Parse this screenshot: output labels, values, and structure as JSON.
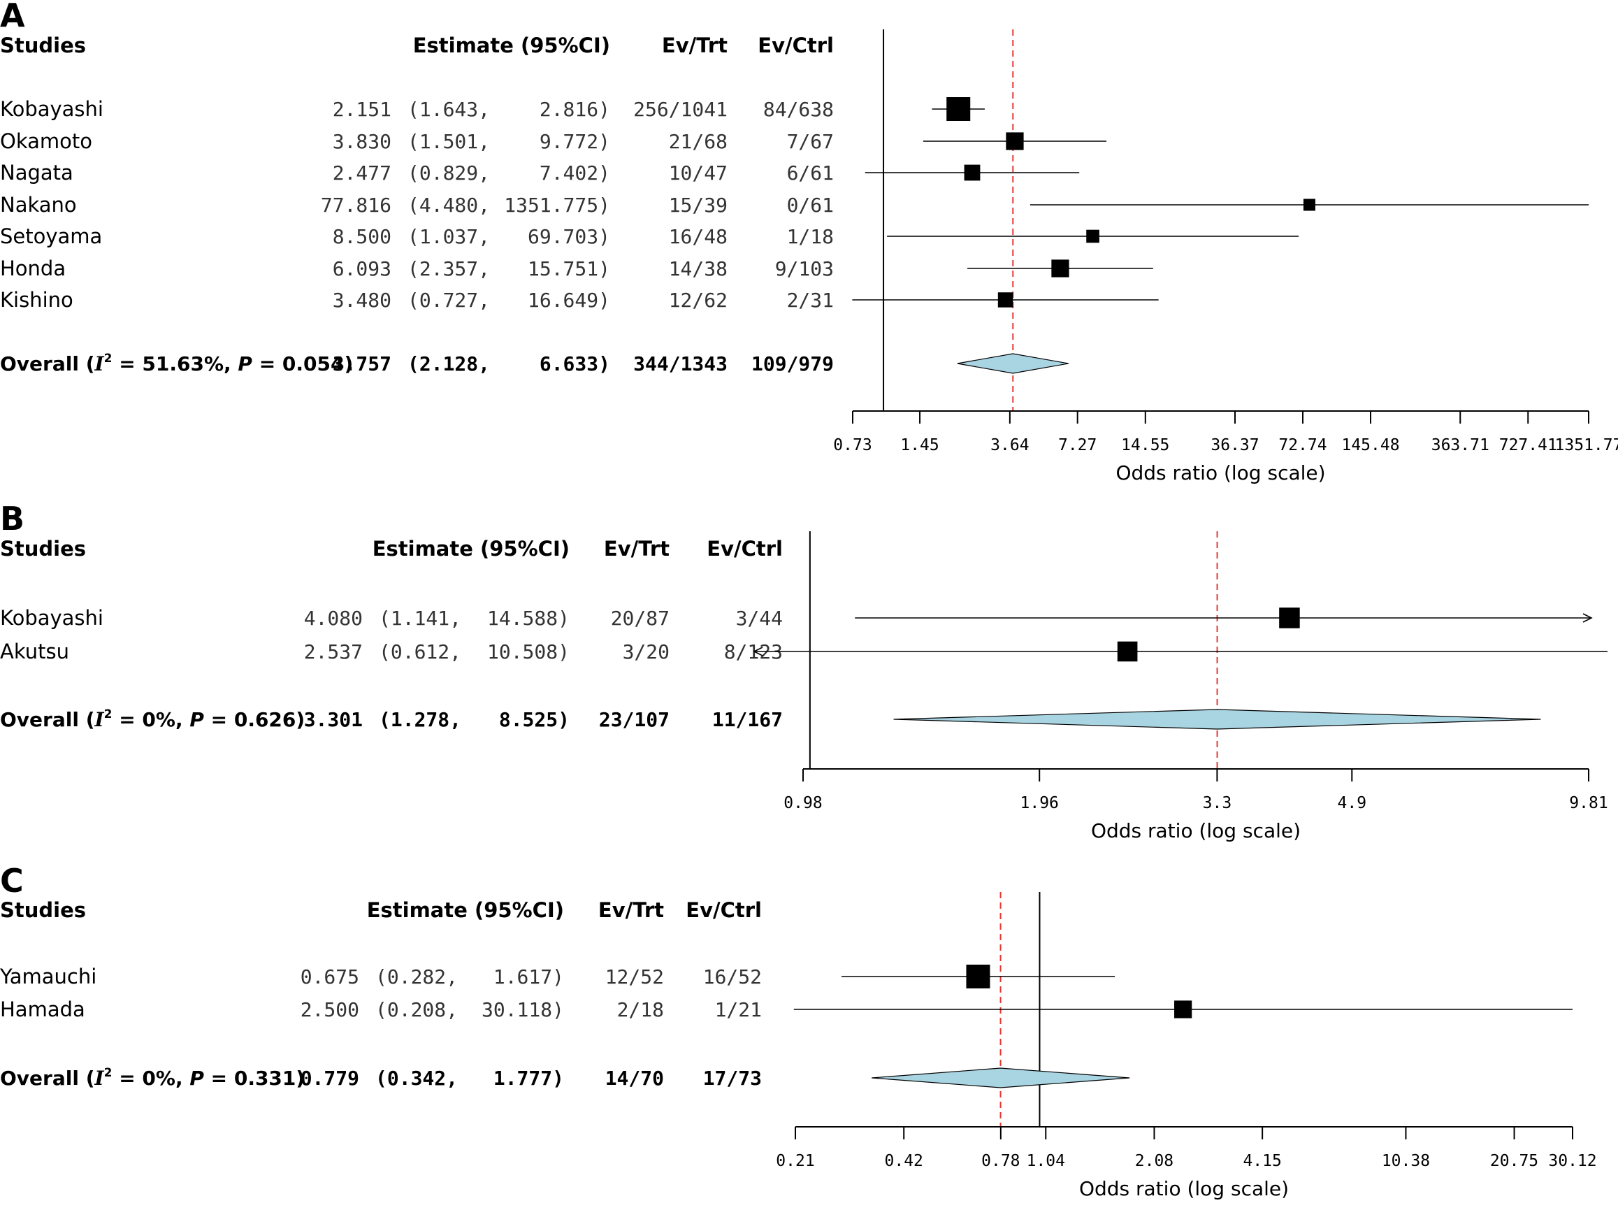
{
  "chart_data": [
    {
      "type": "forest",
      "panel_letter": "A",
      "xlabel": "Odds ratio (log scale)",
      "scale": "log",
      "xlim": [
        0.73,
        1351.77
      ],
      "ticks": [
        {
          "value": 0.73,
          "label": "0.73"
        },
        {
          "value": 1.45,
          "label": "1.45"
        },
        {
          "value": 3.64,
          "label": "3.64"
        },
        {
          "value": 7.27,
          "label": "7.27"
        },
        {
          "value": 14.55,
          "label": "14.55"
        },
        {
          "value": 36.37,
          "label": "36.37"
        },
        {
          "value": 72.74,
          "label": "72.74"
        },
        {
          "value": 145.48,
          "label": "145.48"
        },
        {
          "value": 363.71,
          "label": "363.71"
        },
        {
          "value": 727.41,
          "label": "727.41"
        },
        {
          "value": 1351.77,
          "label": "1351.77"
        }
      ],
      "null_line": 1,
      "pooled_line": 3.757,
      "headers": {
        "studies": "Studies",
        "estimate": "Estimate (95%CI)",
        "ev_trt": "Ev/Trt",
        "ev_ctrl": "Ev/Ctrl"
      },
      "studies": [
        {
          "name": "Kobayashi",
          "est": 2.151,
          "lo": 1.643,
          "hi": 2.816,
          "est_text": "2.151",
          "lo_text": "(1.643,",
          "hi_text": "2.816)",
          "ev_trt": "256/1041",
          "ev_ctrl": "84/638",
          "weight": 1.0
        },
        {
          "name": "Okamoto",
          "est": 3.83,
          "lo": 1.501,
          "hi": 9.772,
          "est_text": "3.830",
          "lo_text": "(1.501,",
          "hi_text": "9.772)",
          "ev_trt": "21/68",
          "ev_ctrl": "7/67",
          "weight": 0.55
        },
        {
          "name": "Nagata",
          "est": 2.477,
          "lo": 0.829,
          "hi": 7.402,
          "est_text": "2.477",
          "lo_text": "(0.829,",
          "hi_text": "7.402)",
          "ev_trt": "10/47",
          "ev_ctrl": "6/61",
          "weight": 0.45
        },
        {
          "name": "Nakano",
          "est": 77.816,
          "lo": 4.48,
          "hi": 1351.775,
          "est_text": "77.816",
          "lo_text": "(4.480,",
          "hi_text": "1351.775)",
          "ev_trt": "15/39",
          "ev_ctrl": "0/61",
          "weight": 0.25
        },
        {
          "name": "Setoyama",
          "est": 8.5,
          "lo": 1.037,
          "hi": 69.703,
          "est_text": "8.500",
          "lo_text": "(1.037,",
          "hi_text": "69.703)",
          "ev_trt": "16/48",
          "ev_ctrl": "1/18",
          "weight": 0.3
        },
        {
          "name": "Honda",
          "est": 6.093,
          "lo": 2.357,
          "hi": 15.751,
          "est_text": "6.093",
          "lo_text": "(2.357,",
          "hi_text": "15.751)",
          "ev_trt": "14/38",
          "ev_ctrl": "9/103",
          "weight": 0.55
        },
        {
          "name": "Kishino",
          "est": 3.48,
          "lo": 0.727,
          "hi": 16.649,
          "est_text": "3.480",
          "lo_text": "(0.727,",
          "hi_text": "16.649)",
          "ev_trt": "12/62",
          "ev_ctrl": "2/31",
          "weight": 0.4
        }
      ],
      "overall": {
        "label_prefix": "Overall (",
        "i2_symbol": "I",
        "i2_sup": "2",
        "stats": " = 51.63%, ",
        "p_symbol": "P",
        "p_text": " = 0.054)",
        "est": 3.757,
        "lo": 2.128,
        "hi": 6.633,
        "est_text": "3.757",
        "lo_text": "(2.128,",
        "hi_text": "6.633)",
        "ev_trt": "344/1343",
        "ev_ctrl": "109/979"
      }
    },
    {
      "type": "forest",
      "panel_letter": "B",
      "xlabel": "Odds ratio (log scale)",
      "scale": "log",
      "xlim": [
        0.98,
        9.81
      ],
      "ticks": [
        {
          "value": 0.98,
          "label": "0.98"
        },
        {
          "value": 1.96,
          "label": "1.96"
        },
        {
          "value": 3.3,
          "label": "3.3"
        },
        {
          "value": 4.9,
          "label": "4.9"
        },
        {
          "value": 9.81,
          "label": "9.81"
        }
      ],
      "null_line": 1,
      "pooled_line": 3.301,
      "headers": {
        "studies": "Studies",
        "estimate": "Estimate (95%CI)",
        "ev_trt": "Ev/Trt",
        "ev_ctrl": "Ev/Ctrl"
      },
      "studies": [
        {
          "name": "Kobayashi",
          "est": 4.08,
          "lo": 1.141,
          "hi": 14.588,
          "est_text": "4.080",
          "lo_text": "(1.141,",
          "hi_text": "14.588)",
          "ev_trt": "20/87",
          "ev_ctrl": "3/44",
          "weight": 0.85,
          "arrow_right": true
        },
        {
          "name": "Akutsu",
          "est": 2.537,
          "lo": 0.612,
          "hi": 10.508,
          "est_text": "2.537",
          "lo_text": "(0.612,",
          "hi_text": "10.508)",
          "ev_trt": "3/20",
          "ev_ctrl": "8/123",
          "weight": 0.8,
          "arrow_left": true
        }
      ],
      "overall": {
        "label_prefix": "Overall (",
        "i2_symbol": "I",
        "i2_sup": "2",
        "stats": " = 0%, ",
        "p_symbol": "P",
        "p_text": " = 0.626)",
        "est": 3.301,
        "lo": 1.278,
        "hi": 8.525,
        "est_text": "3.301",
        "lo_text": "(1.278,",
        "hi_text": "8.525)",
        "ev_trt": "23/107",
        "ev_ctrl": "11/167"
      }
    },
    {
      "type": "forest",
      "panel_letter": "C",
      "xlabel": "Odds ratio (log scale)",
      "scale": "log",
      "xlim": [
        0.21,
        30.12
      ],
      "ticks": [
        {
          "value": 0.21,
          "label": "0.21"
        },
        {
          "value": 0.42,
          "label": "0.42"
        },
        {
          "value": 0.78,
          "label": "0.78"
        },
        {
          "value": 1.04,
          "label": "1.04"
        },
        {
          "value": 2.08,
          "label": "2.08"
        },
        {
          "value": 4.15,
          "label": "4.15"
        },
        {
          "value": 10.38,
          "label": "10.38"
        },
        {
          "value": 20.75,
          "label": "20.75"
        },
        {
          "value": 30.12,
          "label": "30.12"
        }
      ],
      "null_line": 1,
      "pooled_line": 0.779,
      "headers": {
        "studies": "Studies",
        "estimate": "Estimate (95%CI)",
        "ev_trt": "Ev/Trt",
        "ev_ctrl": "Ev/Ctrl"
      },
      "studies": [
        {
          "name": "Yamauchi",
          "est": 0.675,
          "lo": 0.282,
          "hi": 1.617,
          "est_text": "0.675",
          "lo_text": "(0.282,",
          "hi_text": "1.617)",
          "ev_trt": "12/52",
          "ev_ctrl": "16/52",
          "weight": 1.0
        },
        {
          "name": "Hamada",
          "est": 2.5,
          "lo": 0.208,
          "hi": 30.118,
          "est_text": "2.500",
          "lo_text": "(0.208,",
          "hi_text": "30.118)",
          "ev_trt": "2/18",
          "ev_ctrl": "1/21",
          "weight": 0.55
        }
      ],
      "overall": {
        "label_prefix": "Overall (",
        "i2_symbol": "I",
        "i2_sup": "2",
        "stats": " = 0%, ",
        "p_symbol": "P",
        "p_text": " = 0.331)",
        "est": 0.779,
        "lo": 0.342,
        "hi": 1.777,
        "est_text": "0.779",
        "lo_text": "(0.342,",
        "hi_text": "1.777)",
        "ev_trt": "14/70",
        "ev_ctrl": "17/73"
      }
    }
  ],
  "colors": {
    "pooled_line": "#e53935",
    "diamond_fill": "#a9d4e2",
    "ink": "#000000",
    "value_text": "#333333"
  }
}
